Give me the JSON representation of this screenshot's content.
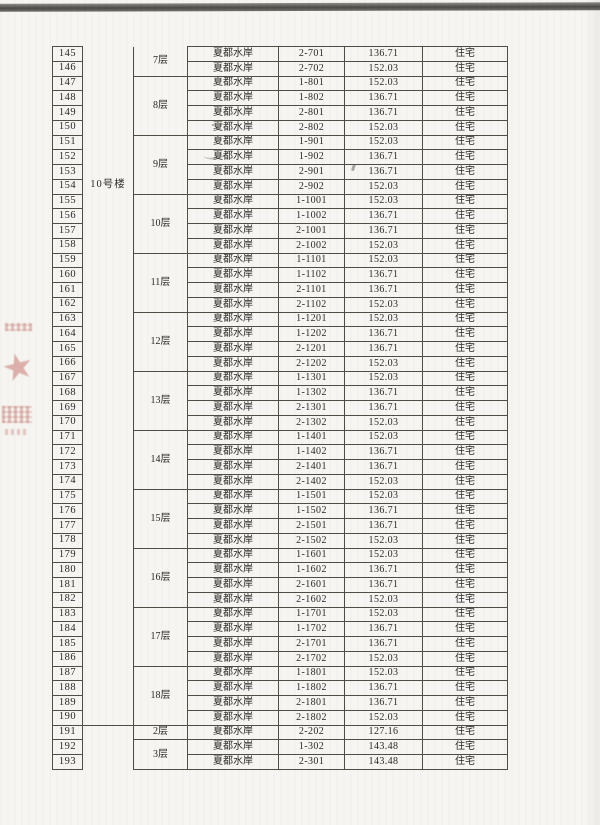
{
  "document": {
    "building_groups": [
      {
        "label": "10号楼",
        "rows": 46
      },
      {
        "label": "",
        "rows": 3
      }
    ],
    "rows": [
      {
        "seq": "145",
        "floor": "7层",
        "project": "夏都水岸",
        "unit": "2-701",
        "area": "136.71",
        "use": "住宅"
      },
      {
        "seq": "146",
        "floor": "7层",
        "project": "夏都水岸",
        "unit": "2-702",
        "area": "152.03",
        "use": "住宅"
      },
      {
        "seq": "147",
        "floor": "8层",
        "project": "夏都水岸",
        "unit": "1-801",
        "area": "152.03",
        "use": "住宅"
      },
      {
        "seq": "148",
        "floor": "8层",
        "project": "夏都水岸",
        "unit": "1-802",
        "area": "136.71",
        "use": "住宅"
      },
      {
        "seq": "149",
        "floor": "8层",
        "project": "夏都水岸",
        "unit": "2-801",
        "area": "136.71",
        "use": "住宅"
      },
      {
        "seq": "150",
        "floor": "8层",
        "project": "夏都水岸",
        "unit": "2-802",
        "area": "152.03",
        "use": "住宅"
      },
      {
        "seq": "151",
        "floor": "9层",
        "project": "夏都水岸",
        "unit": "1-901",
        "area": "152.03",
        "use": "住宅"
      },
      {
        "seq": "152",
        "floor": "9层",
        "project": "夏都水岸",
        "unit": "1-902",
        "area": "136.71",
        "use": "住宅"
      },
      {
        "seq": "153",
        "floor": "9层",
        "project": "夏都水岸",
        "unit": "2-901",
        "area": "136.71",
        "use": "住宅"
      },
      {
        "seq": "154",
        "floor": "9层",
        "project": "夏都水岸",
        "unit": "2-902",
        "area": "152.03",
        "use": "住宅"
      },
      {
        "seq": "155",
        "floor": "10层",
        "project": "夏都水岸",
        "unit": "1-1001",
        "area": "152.03",
        "use": "住宅"
      },
      {
        "seq": "156",
        "floor": "10层",
        "project": "夏都水岸",
        "unit": "1-1002",
        "area": "136.71",
        "use": "住宅"
      },
      {
        "seq": "157",
        "floor": "10层",
        "project": "夏都水岸",
        "unit": "2-1001",
        "area": "136.71",
        "use": "住宅"
      },
      {
        "seq": "158",
        "floor": "10层",
        "project": "夏都水岸",
        "unit": "2-1002",
        "area": "152.03",
        "use": "住宅"
      },
      {
        "seq": "159",
        "floor": "11层",
        "project": "夏都水岸",
        "unit": "1-1101",
        "area": "152.03",
        "use": "住宅"
      },
      {
        "seq": "160",
        "floor": "11层",
        "project": "夏都水岸",
        "unit": "1-1102",
        "area": "136.71",
        "use": "住宅"
      },
      {
        "seq": "161",
        "floor": "11层",
        "project": "夏都水岸",
        "unit": "2-1101",
        "area": "136.71",
        "use": "住宅"
      },
      {
        "seq": "162",
        "floor": "11层",
        "project": "夏都水岸",
        "unit": "2-1102",
        "area": "152.03",
        "use": "住宅"
      },
      {
        "seq": "163",
        "floor": "12层",
        "project": "夏都水岸",
        "unit": "1-1201",
        "area": "152.03",
        "use": "住宅"
      },
      {
        "seq": "164",
        "floor": "12层",
        "project": "夏都水岸",
        "unit": "1-1202",
        "area": "136.71",
        "use": "住宅"
      },
      {
        "seq": "165",
        "floor": "12层",
        "project": "夏都水岸",
        "unit": "2-1201",
        "area": "136.71",
        "use": "住宅"
      },
      {
        "seq": "166",
        "floor": "12层",
        "project": "夏都水岸",
        "unit": "2-1202",
        "area": "152.03",
        "use": "住宅"
      },
      {
        "seq": "167",
        "floor": "13层",
        "project": "夏都水岸",
        "unit": "1-1301",
        "area": "152.03",
        "use": "住宅"
      },
      {
        "seq": "168",
        "floor": "13层",
        "project": "夏都水岸",
        "unit": "1-1302",
        "area": "136.71",
        "use": "住宅"
      },
      {
        "seq": "169",
        "floor": "13层",
        "project": "夏都水岸",
        "unit": "2-1301",
        "area": "136.71",
        "use": "住宅"
      },
      {
        "seq": "170",
        "floor": "13层",
        "project": "夏都水岸",
        "unit": "2-1302",
        "area": "152.03",
        "use": "住宅"
      },
      {
        "seq": "171",
        "floor": "14层",
        "project": "夏都水岸",
        "unit": "1-1401",
        "area": "152.03",
        "use": "住宅"
      },
      {
        "seq": "172",
        "floor": "14层",
        "project": "夏都水岸",
        "unit": "1-1402",
        "area": "136.71",
        "use": "住宅"
      },
      {
        "seq": "173",
        "floor": "14层",
        "project": "夏都水岸",
        "unit": "2-1401",
        "area": "136.71",
        "use": "住宅"
      },
      {
        "seq": "174",
        "floor": "14层",
        "project": "夏都水岸",
        "unit": "2-1402",
        "area": "152.03",
        "use": "住宅"
      },
      {
        "seq": "175",
        "floor": "15层",
        "project": "夏都水岸",
        "unit": "1-1501",
        "area": "152.03",
        "use": "住宅"
      },
      {
        "seq": "176",
        "floor": "15层",
        "project": "夏都水岸",
        "unit": "1-1502",
        "area": "136.71",
        "use": "住宅"
      },
      {
        "seq": "177",
        "floor": "15层",
        "project": "夏都水岸",
        "unit": "2-1501",
        "area": "136.71",
        "use": "住宅"
      },
      {
        "seq": "178",
        "floor": "15层",
        "project": "夏都水岸",
        "unit": "2-1502",
        "area": "152.03",
        "use": "住宅"
      },
      {
        "seq": "179",
        "floor": "16层",
        "project": "夏都水岸",
        "unit": "1-1601",
        "area": "152.03",
        "use": "住宅"
      },
      {
        "seq": "180",
        "floor": "16层",
        "project": "夏都水岸",
        "unit": "1-1602",
        "area": "136.71",
        "use": "住宅"
      },
      {
        "seq": "181",
        "floor": "16层",
        "project": "夏都水岸",
        "unit": "2-1601",
        "area": "136.71",
        "use": "住宅"
      },
      {
        "seq": "182",
        "floor": "16层",
        "project": "夏都水岸",
        "unit": "2-1602",
        "area": "152.03",
        "use": "住宅"
      },
      {
        "seq": "183",
        "floor": "17层",
        "project": "夏都水岸",
        "unit": "1-1701",
        "area": "152.03",
        "use": "住宅"
      },
      {
        "seq": "184",
        "floor": "17层",
        "project": "夏都水岸",
        "unit": "1-1702",
        "area": "136.71",
        "use": "住宅"
      },
      {
        "seq": "185",
        "floor": "17层",
        "project": "夏都水岸",
        "unit": "2-1701",
        "area": "136.71",
        "use": "住宅"
      },
      {
        "seq": "186",
        "floor": "17层",
        "project": "夏都水岸",
        "unit": "2-1702",
        "area": "152.03",
        "use": "住宅"
      },
      {
        "seq": "187",
        "floor": "18层",
        "project": "夏都水岸",
        "unit": "1-1801",
        "area": "152.03",
        "use": "住宅"
      },
      {
        "seq": "188",
        "floor": "18层",
        "project": "夏都水岸",
        "unit": "1-1802",
        "area": "136.71",
        "use": "住宅"
      },
      {
        "seq": "189",
        "floor": "18层",
        "project": "夏都水岸",
        "unit": "2-1801",
        "area": "136.71",
        "use": "住宅"
      },
      {
        "seq": "190",
        "floor": "18层",
        "project": "夏都水岸",
        "unit": "2-1802",
        "area": "152.03",
        "use": "住宅"
      },
      {
        "seq": "191",
        "floor": "2层",
        "project": "夏都水岸",
        "unit": "2-202",
        "area": "127.16",
        "use": "住宅"
      },
      {
        "seq": "192",
        "floor": "3层",
        "project": "夏都水岸",
        "unit": "1-302",
        "area": "143.48",
        "use": "住宅"
      },
      {
        "seq": "193",
        "floor": "3层",
        "project": "夏都水岸",
        "unit": "2-301",
        "area": "143.48",
        "use": "住宅"
      }
    ]
  },
  "seal": {
    "star_glyph": "★",
    "color": "#c66c66"
  },
  "scan": {
    "edge_color": "#4c4b47",
    "border_color": "#504d45",
    "paper_color": "#f6f5f1"
  }
}
